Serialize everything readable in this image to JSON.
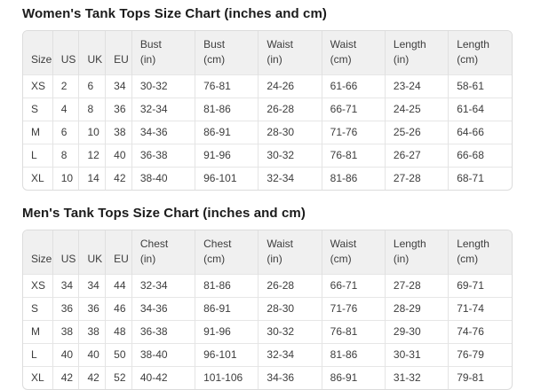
{
  "colors": {
    "header_bg": "#f0f0f0",
    "border": "#e4e4e4",
    "outer_border": "#dcdcdc",
    "text": "#3d3d3d",
    "title_text": "#1b1b1b"
  },
  "women": {
    "title": "Women's Tank Tops Size Chart (inches and cm)",
    "headers": [
      "Size",
      "US",
      "UK",
      "EU",
      "Bust\n(in)",
      "Bust\n(cm)",
      "Waist\n(in)",
      "Waist\n(cm)",
      "Length\n(in)",
      "Length\n(cm)"
    ],
    "rows": [
      [
        "XS",
        "2",
        "6",
        "34",
        "30-32",
        "76-81",
        "24-26",
        "61-66",
        "23-24",
        "58-61"
      ],
      [
        "S",
        "4",
        "8",
        "36",
        "32-34",
        "81-86",
        "26-28",
        "66-71",
        "24-25",
        "61-64"
      ],
      [
        "M",
        "6",
        "10",
        "38",
        "34-36",
        "86-91",
        "28-30",
        "71-76",
        "25-26",
        "64-66"
      ],
      [
        "L",
        "8",
        "12",
        "40",
        "36-38",
        "91-96",
        "30-32",
        "76-81",
        "26-27",
        "66-68"
      ],
      [
        "XL",
        "10",
        "14",
        "42",
        "38-40",
        "96-101",
        "32-34",
        "81-86",
        "27-28",
        "68-71"
      ]
    ]
  },
  "men": {
    "title": "Men's Tank Tops Size Chart (inches and cm)",
    "headers": [
      "Size",
      "US",
      "UK",
      "EU",
      "Chest\n(in)",
      "Chest\n(cm)",
      "Waist\n(in)",
      "Waist\n(cm)",
      "Length\n(in)",
      "Length\n(cm)"
    ],
    "rows": [
      [
        "XS",
        "34",
        "34",
        "44",
        "32-34",
        "81-86",
        "26-28",
        "66-71",
        "27-28",
        "69-71"
      ],
      [
        "S",
        "36",
        "36",
        "46",
        "34-36",
        "86-91",
        "28-30",
        "71-76",
        "28-29",
        "71-74"
      ],
      [
        "M",
        "38",
        "38",
        "48",
        "36-38",
        "91-96",
        "30-32",
        "76-81",
        "29-30",
        "74-76"
      ],
      [
        "L",
        "40",
        "40",
        "50",
        "38-40",
        "96-101",
        "32-34",
        "81-86",
        "30-31",
        "76-79"
      ],
      [
        "XL",
        "42",
        "42",
        "52",
        "40-42",
        "101-106",
        "34-36",
        "86-91",
        "31-32",
        "79-81"
      ]
    ]
  }
}
